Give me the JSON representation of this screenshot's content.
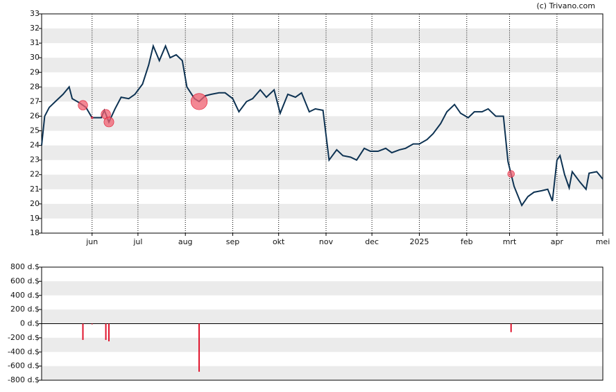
{
  "chart_data": [
    {
      "type": "line",
      "annotation": "(c) Trivano.com",
      "color": "#0d3252",
      "grid": "bands",
      "x": [
        0,
        2,
        5,
        9,
        14,
        18,
        20,
        25,
        29,
        33,
        39,
        41,
        44,
        48,
        52,
        57,
        61,
        66,
        70,
        73,
        77,
        81,
        84,
        88,
        92,
        95,
        100,
        103,
        107,
        111,
        116,
        120,
        125,
        129,
        134,
        138,
        143,
        147,
        152,
        156,
        161,
        166,
        170,
        175,
        179,
        184,
        188,
        193,
        197,
        202,
        206,
        211,
        215,
        220,
        225,
        229,
        234,
        238,
        243,
        247,
        252,
        256,
        261,
        265,
        270,
        274,
        279,
        283,
        288,
        292,
        297,
        302,
        305,
        309,
        314,
        318,
        322,
        327,
        331,
        334,
        337,
        339,
        342,
        345,
        347,
        352,
        356,
        358,
        363,
        367
      ],
      "values": [
        24.0,
        26.0,
        26.6,
        27.0,
        27.5,
        28.0,
        27.2,
        26.9,
        26.6,
        25.9,
        25.9,
        26.4,
        25.6,
        26.5,
        27.3,
        27.2,
        27.5,
        28.2,
        29.5,
        30.8,
        29.8,
        30.8,
        30.0,
        30.2,
        29.8,
        28.0,
        27.2,
        27.0,
        27.4,
        27.5,
        27.6,
        27.6,
        27.2,
        26.3,
        27.0,
        27.2,
        27.8,
        27.3,
        27.8,
        26.2,
        27.5,
        27.3,
        27.6,
        26.3,
        26.5,
        26.4,
        23.0,
        23.7,
        23.3,
        23.2,
        23.0,
        23.8,
        23.6,
        23.6,
        23.8,
        23.5,
        23.7,
        23.8,
        24.1,
        24.1,
        24.4,
        24.8,
        25.5,
        26.3,
        26.8,
        26.2,
        25.9,
        26.3,
        26.3,
        26.5,
        26.0,
        26.0,
        22.9,
        21.2,
        19.9,
        20.5,
        20.8,
        20.9,
        21.0,
        20.2,
        23.0,
        23.3,
        22.0,
        21.1,
        22.2,
        21.5,
        21.0,
        22.1,
        22.2,
        21.7
      ],
      "xlim": [
        0,
        367
      ],
      "xticks": [
        {
          "value": 33,
          "label": "jun"
        },
        {
          "value": 63,
          "label": "jul"
        },
        {
          "value": 94,
          "label": "aug"
        },
        {
          "value": 125,
          "label": "sep"
        },
        {
          "value": 155,
          "label": "okt"
        },
        {
          "value": 186,
          "label": "nov"
        },
        {
          "value": 216,
          "label": "dec"
        },
        {
          "value": 247,
          "label": "2025"
        },
        {
          "value": 278,
          "label": "feb"
        },
        {
          "value": 306,
          "label": "mrt"
        },
        {
          "value": 337,
          "label": "apr"
        },
        {
          "value": 367,
          "label": "mei"
        }
      ],
      "ylim": [
        18,
        33
      ],
      "yticks": [
        18,
        19,
        20,
        21,
        22,
        23,
        24,
        25,
        26,
        27,
        28,
        29,
        30,
        31,
        32,
        33
      ]
    },
    {
      "type": "bar",
      "color": "#e0142d",
      "marker_color": "#f06070",
      "grid": "bands",
      "x": [
        27,
        33,
        42,
        44,
        103,
        307
      ],
      "values": [
        -230,
        -10,
        -230,
        -250,
        -680,
        -120
      ],
      "xlim": [
        0,
        367
      ],
      "ylim": [
        -800,
        800
      ],
      "yticks": [
        {
          "value": -800,
          "label": "-800 d.$"
        },
        {
          "value": -600,
          "label": "-600 d.$"
        },
        {
          "value": -400,
          "label": "-400 d.$"
        },
        {
          "value": -200,
          "label": "-200 d.$"
        },
        {
          "value": 0,
          "label": "0 d.$"
        },
        {
          "value": 200,
          "label": "200 d.$"
        },
        {
          "value": 400,
          "label": "400 d.$"
        },
        {
          "value": 600,
          "label": "600 d.$"
        },
        {
          "value": 800,
          "label": "800 d.$"
        }
      ]
    }
  ]
}
